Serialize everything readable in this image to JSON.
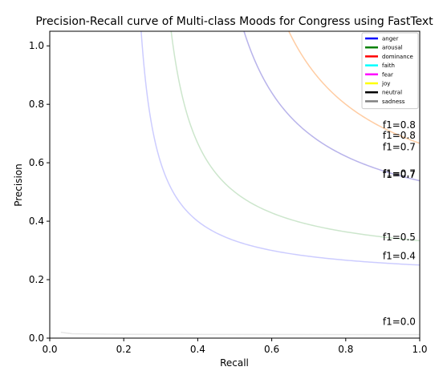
{
  "chart_data": {
    "type": "line",
    "title": "Precision-Recall curve of Multi-class Moods for Congress using FastText",
    "xlabel": "Recall",
    "ylabel": "Precision",
    "xlim": [
      0.0,
      1.0
    ],
    "ylim": [
      0.0,
      1.05
    ],
    "xticks": [
      "0.0",
      "0.2",
      "0.4",
      "0.6",
      "0.8",
      "1.0"
    ],
    "yticks": [
      "0.0",
      "0.2",
      "0.4",
      "0.6",
      "0.8",
      "1.0"
    ],
    "grid": false,
    "legend_position": "top-right",
    "legend": [
      {
        "name": "anger",
        "color": "#0000ff"
      },
      {
        "name": "arousal",
        "color": "#008000"
      },
      {
        "name": "dominance",
        "color": "#ff0000"
      },
      {
        "name": "faith",
        "color": "#00ffff"
      },
      {
        "name": "fear",
        "color": "#ff00ff"
      },
      {
        "name": "joy",
        "color": "#ffff00"
      },
      {
        "name": "neutral",
        "color": "#000000"
      },
      {
        "name": "sadness",
        "color": "#808080"
      }
    ],
    "iso_f1_curves": [
      {
        "f1": 0.4,
        "label": "f1=0.4",
        "color": "#0000ff",
        "label_y": 0.27
      },
      {
        "f1": 0.5,
        "label": "f1=0.5",
        "color": "#008000",
        "label_y": 0.335
      },
      {
        "f1": 0.7,
        "label": "f1=0.7",
        "color": "#ff00ff",
        "label_y": 0.548
      },
      {
        "f1": 0.7,
        "label": "f1=0.7",
        "color": "#800080",
        "label_y": 0.553
      },
      {
        "f1": 0.7,
        "label": "f1=0.7",
        "color": "#00ffff",
        "label_y": 0.643
      },
      {
        "f1": 0.8,
        "label": "f1=0.8",
        "color": "#ffff00",
        "label_y": 0.682
      },
      {
        "f1": 0.8,
        "label": "f1=0.8",
        "color": "#ff0000",
        "label_y": 0.718
      },
      {
        "f1": 0.0,
        "label": "f1=0.0",
        "color": "#808080",
        "label_y": 0.045
      }
    ]
  }
}
